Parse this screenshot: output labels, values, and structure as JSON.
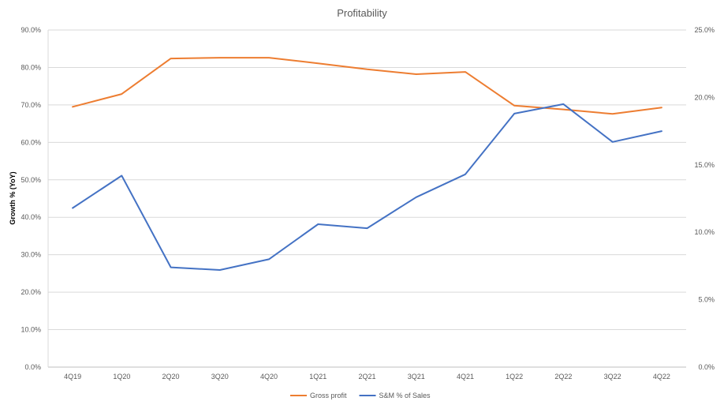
{
  "chart_data": {
    "type": "line",
    "title": "Profitability",
    "ylabel": "Growth % (YoY)",
    "categories": [
      "4Q19",
      "1Q20",
      "2Q20",
      "3Q20",
      "4Q20",
      "1Q21",
      "2Q21",
      "3Q21",
      "4Q21",
      "1Q22",
      "2Q22",
      "3Q22",
      "4Q22"
    ],
    "y_left": {
      "min": 0,
      "max": 90,
      "step": 10,
      "tick_labels": [
        "0.0%",
        "10.0%",
        "20.0%",
        "30.0%",
        "40.0%",
        "50.0%",
        "60.0%",
        "70.0%",
        "80.0%",
        "90.0%"
      ]
    },
    "y_right": {
      "min": 0,
      "max": 25,
      "step": 5,
      "tick_labels": [
        "0.0%",
        "5.0%",
        "10.0%",
        "15.0%",
        "20.0%",
        "25.0%"
      ]
    },
    "series": [
      {
        "name": "Gross profit",
        "axis": "left",
        "color": "#ED7D31",
        "values": [
          69.5,
          72.9,
          82.4,
          82.6,
          82.6,
          81.1,
          79.5,
          78.2,
          78.8,
          69.8,
          68.8,
          67.6,
          69.3
        ]
      },
      {
        "name": "S&M % of Sales",
        "axis": "right",
        "color": "#4472C4",
        "values": [
          11.8,
          14.2,
          7.4,
          7.2,
          8.0,
          10.6,
          10.3,
          12.6,
          14.3,
          18.8,
          19.5,
          16.7,
          17.5
        ]
      }
    ],
    "grid": true,
    "legend_position": "bottom"
  }
}
